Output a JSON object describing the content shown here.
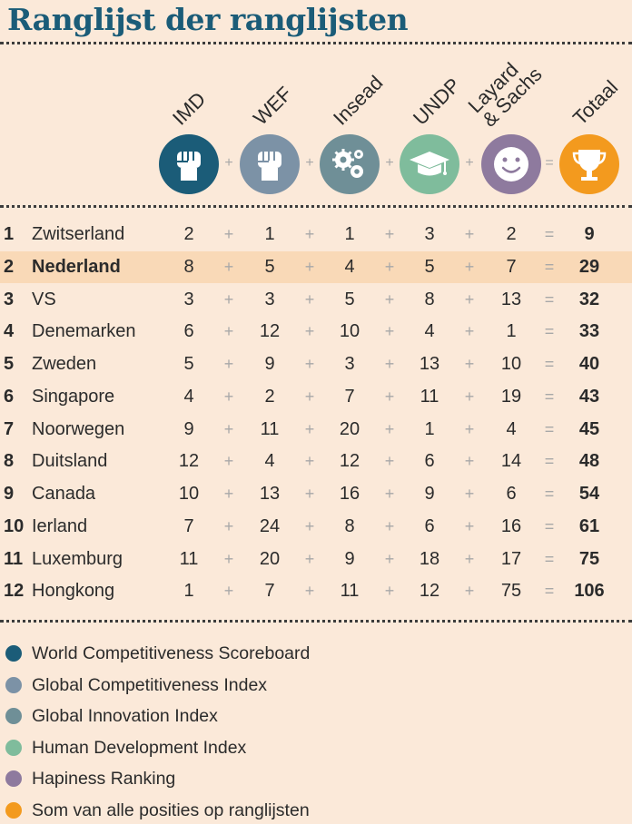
{
  "title": "Ranglijst der ranglijsten",
  "columns": [
    {
      "label": "IMD",
      "icon": "fist-icon",
      "color": "#1b5c78"
    },
    {
      "label": "WEF",
      "icon": "fist-icon",
      "color": "#7c92a6"
    },
    {
      "label": "Insead",
      "icon": "gears-icon",
      "color": "#6f8f97"
    },
    {
      "label": "UNDP",
      "icon": "graduation-cap-icon",
      "color": "#7fbc9c"
    },
    {
      "label": "Layard\n& Sachs",
      "icon": "smiley-icon",
      "color": "#8e7a9e"
    },
    {
      "label": "Totaal",
      "icon": "trophy-icon",
      "color": "#f39a1e"
    }
  ],
  "operators": {
    "plus": "+",
    "equals": "="
  },
  "chart_data": {
    "type": "table",
    "title": "Ranglijst der ranglijsten",
    "columns": [
      "IMD",
      "WEF",
      "Insead",
      "UNDP",
      "Layard & Sachs",
      "Totaal"
    ],
    "highlighted_row": "Nederland",
    "rows": [
      {
        "rank": 1,
        "country": "Zwitserland",
        "values": [
          2,
          1,
          1,
          3,
          2
        ],
        "total": 9
      },
      {
        "rank": 2,
        "country": "Nederland",
        "values": [
          8,
          5,
          4,
          5,
          7
        ],
        "total": 29
      },
      {
        "rank": 3,
        "country": "VS",
        "values": [
          3,
          3,
          5,
          8,
          13
        ],
        "total": 32
      },
      {
        "rank": 4,
        "country": "Denemarken",
        "values": [
          6,
          12,
          10,
          4,
          1
        ],
        "total": 33
      },
      {
        "rank": 5,
        "country": "Zweden",
        "values": [
          5,
          9,
          3,
          13,
          10
        ],
        "total": 40
      },
      {
        "rank": 6,
        "country": "Singapore",
        "values": [
          4,
          2,
          7,
          11,
          19
        ],
        "total": 43
      },
      {
        "rank": 7,
        "country": "Noorwegen",
        "values": [
          9,
          11,
          20,
          1,
          4
        ],
        "total": 45
      },
      {
        "rank": 8,
        "country": "Duitsland",
        "values": [
          12,
          4,
          12,
          6,
          14
        ],
        "total": 48
      },
      {
        "rank": 9,
        "country": "Canada",
        "values": [
          10,
          13,
          16,
          9,
          6
        ],
        "total": 54
      },
      {
        "rank": 10,
        "country": "Ierland",
        "values": [
          7,
          24,
          8,
          6,
          16
        ],
        "total": 61
      },
      {
        "rank": 11,
        "country": "Luxemburg",
        "values": [
          11,
          20,
          9,
          18,
          17
        ],
        "total": 75
      },
      {
        "rank": 12,
        "country": "Hongkong",
        "values": [
          1,
          7,
          11,
          12,
          75
        ],
        "total": 106
      }
    ]
  },
  "legend": [
    {
      "label": "World Competitiveness Scoreboard",
      "color": "#1b5c78"
    },
    {
      "label": "Global Competitiveness Index",
      "color": "#7c92a6"
    },
    {
      "label": "Global Innovation Index",
      "color": "#6f8f97"
    },
    {
      "label": "Human Development Index",
      "color": "#7fbc9c"
    },
    {
      "label": "Hapiness Ranking",
      "color": "#8e7a9e"
    },
    {
      "label": "Som van alle posities op ranglijsten",
      "color": "#f39a1e"
    }
  ]
}
